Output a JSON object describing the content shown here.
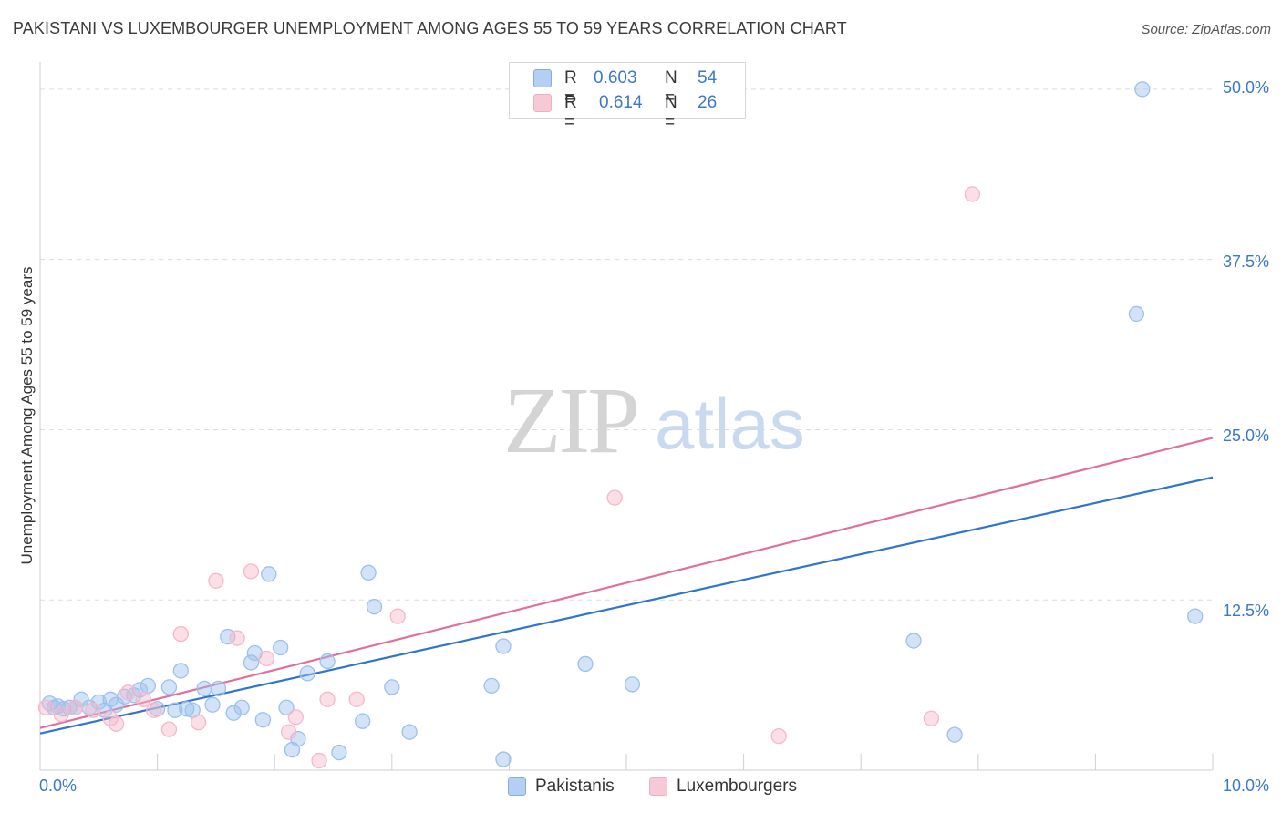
{
  "title": "PAKISTANI VS LUXEMBOURGER UNEMPLOYMENT AMONG AGES 55 TO 59 YEARS CORRELATION CHART",
  "source": "Source: ZipAtlas.com",
  "watermark": {
    "zip": "ZIP",
    "atlas": "atlas"
  },
  "legend": {
    "items": [
      {
        "r_label": "R =",
        "r_value": "0.603",
        "n_label": "N =",
        "n_value": "54",
        "color": "#9cc0ee"
      },
      {
        "r_label": "R =",
        "r_value": "0.614",
        "n_label": "N =",
        "n_value": "26",
        "color": "#f5b8ca"
      }
    ]
  },
  "bottom_legend": [
    "Pakistanis",
    "Luxembourgers"
  ],
  "chart_data": {
    "type": "scatter",
    "title": "PAKISTANI VS LUXEMBOURGER UNEMPLOYMENT AMONG AGES 55 TO 59 YEARS CORRELATION CHART",
    "xlabel": "",
    "ylabel": "Unemployment Among Ages 55 to 59 years",
    "xlim": [
      0,
      10
    ],
    "ylim": [
      0,
      52
    ],
    "x_tick_labels": [
      "0.0%",
      "10.0%"
    ],
    "y_ticks": [
      12.5,
      25.0,
      37.5,
      50.0
    ],
    "y_tick_labels": [
      "12.5%",
      "25.0%",
      "37.5%",
      "50.0%"
    ],
    "grid": true,
    "series": [
      {
        "name": "Pakistanis",
        "color": "#9cc0ee",
        "line_color": "#2f74d0",
        "trend": {
          "x": [
            0,
            10
          ],
          "y": [
            2.7,
            21.5
          ]
        },
        "points": [
          [
            0.08,
            4.9
          ],
          [
            0.12,
            4.6
          ],
          [
            0.15,
            4.7
          ],
          [
            0.2,
            4.5
          ],
          [
            0.25,
            4.6
          ],
          [
            0.35,
            5.2
          ],
          [
            0.42,
            4.6
          ],
          [
            0.5,
            5.0
          ],
          [
            0.55,
            4.4
          ],
          [
            0.6,
            5.2
          ],
          [
            0.65,
            4.8
          ],
          [
            0.72,
            5.4
          ],
          [
            0.8,
            5.5
          ],
          [
            0.85,
            5.9
          ],
          [
            0.92,
            6.2
          ],
          [
            1.0,
            4.5
          ],
          [
            1.1,
            6.1
          ],
          [
            1.2,
            7.3
          ],
          [
            1.25,
            4.5
          ],
          [
            1.3,
            4.4
          ],
          [
            1.4,
            6.0
          ],
          [
            1.47,
            4.8
          ],
          [
            1.52,
            6.0
          ],
          [
            1.6,
            9.8
          ],
          [
            1.65,
            4.2
          ],
          [
            1.72,
            4.6
          ],
          [
            1.8,
            7.9
          ],
          [
            1.83,
            8.6
          ],
          [
            1.9,
            3.7
          ],
          [
            1.95,
            14.4
          ],
          [
            2.05,
            9.0
          ],
          [
            2.1,
            4.6
          ],
          [
            2.15,
            1.5
          ],
          [
            2.2,
            2.3
          ],
          [
            2.28,
            7.1
          ],
          [
            2.45,
            8.0
          ],
          [
            2.55,
            1.3
          ],
          [
            2.75,
            3.6
          ],
          [
            2.8,
            14.5
          ],
          [
            2.85,
            12.0
          ],
          [
            3.0,
            6.1
          ],
          [
            3.15,
            2.8
          ],
          [
            3.85,
            6.2
          ],
          [
            3.95,
            9.1
          ],
          [
            3.95,
            0.8
          ],
          [
            4.65,
            7.8
          ],
          [
            5.05,
            6.3
          ],
          [
            7.45,
            9.5
          ],
          [
            7.8,
            2.6
          ],
          [
            9.35,
            33.5
          ],
          [
            9.4,
            50.0
          ],
          [
            9.85,
            11.3
          ],
          [
            0.3,
            4.6
          ],
          [
            1.15,
            4.4
          ]
        ]
      },
      {
        "name": "Luxembourgers",
        "color": "#f5b8ca",
        "line_color": "#e0709a",
        "trend": {
          "x": [
            0,
            10
          ],
          "y": [
            3.1,
            24.4
          ]
        },
        "points": [
          [
            0.05,
            4.6
          ],
          [
            0.18,
            4.1
          ],
          [
            0.3,
            4.6
          ],
          [
            0.45,
            4.4
          ],
          [
            0.6,
            3.8
          ],
          [
            0.65,
            3.4
          ],
          [
            0.75,
            5.7
          ],
          [
            0.88,
            5.2
          ],
          [
            0.97,
            4.4
          ],
          [
            1.1,
            3.0
          ],
          [
            1.2,
            10.0
          ],
          [
            1.35,
            3.5
          ],
          [
            1.5,
            13.9
          ],
          [
            1.68,
            9.7
          ],
          [
            1.8,
            14.6
          ],
          [
            1.93,
            8.2
          ],
          [
            2.12,
            2.8
          ],
          [
            2.18,
            3.9
          ],
          [
            2.38,
            0.7
          ],
          [
            2.45,
            5.2
          ],
          [
            2.7,
            5.2
          ],
          [
            3.05,
            11.3
          ],
          [
            4.9,
            20.0
          ],
          [
            6.3,
            2.5
          ],
          [
            7.6,
            3.8
          ],
          [
            7.95,
            42.3
          ]
        ]
      }
    ]
  }
}
